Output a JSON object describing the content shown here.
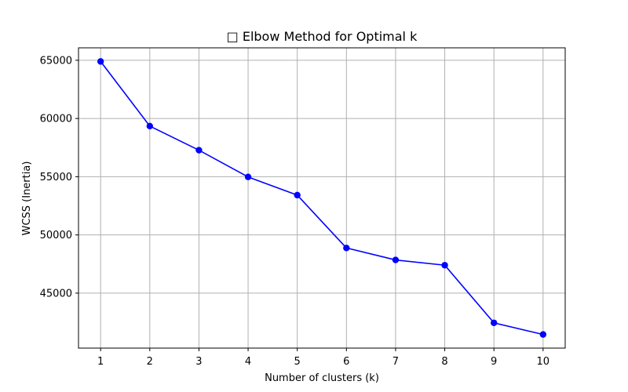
{
  "chart_data": {
    "type": "line",
    "title": "□ Elbow Method for Optimal k",
    "xlabel": "Number of clusters (k)",
    "ylabel": "WCSS (Inertia)",
    "x": [
      1,
      2,
      3,
      4,
      5,
      6,
      7,
      8,
      9,
      10
    ],
    "series": [
      {
        "values": [
          64900,
          59350,
          57280,
          54980,
          53420,
          48880,
          47850,
          47400,
          42450,
          41450
        ],
        "color": "#0000ff",
        "marker": "circle"
      }
    ],
    "xticks": [
      1,
      2,
      3,
      4,
      5,
      6,
      7,
      8,
      9,
      10
    ],
    "yticks": [
      45000,
      50000,
      55000,
      60000,
      65000
    ],
    "xlim": [
      0.55,
      10.45
    ],
    "ylim": [
      40280,
      66070
    ],
    "grid": true,
    "grid_color": "#b0b0b0",
    "axes_color": "#000000"
  }
}
